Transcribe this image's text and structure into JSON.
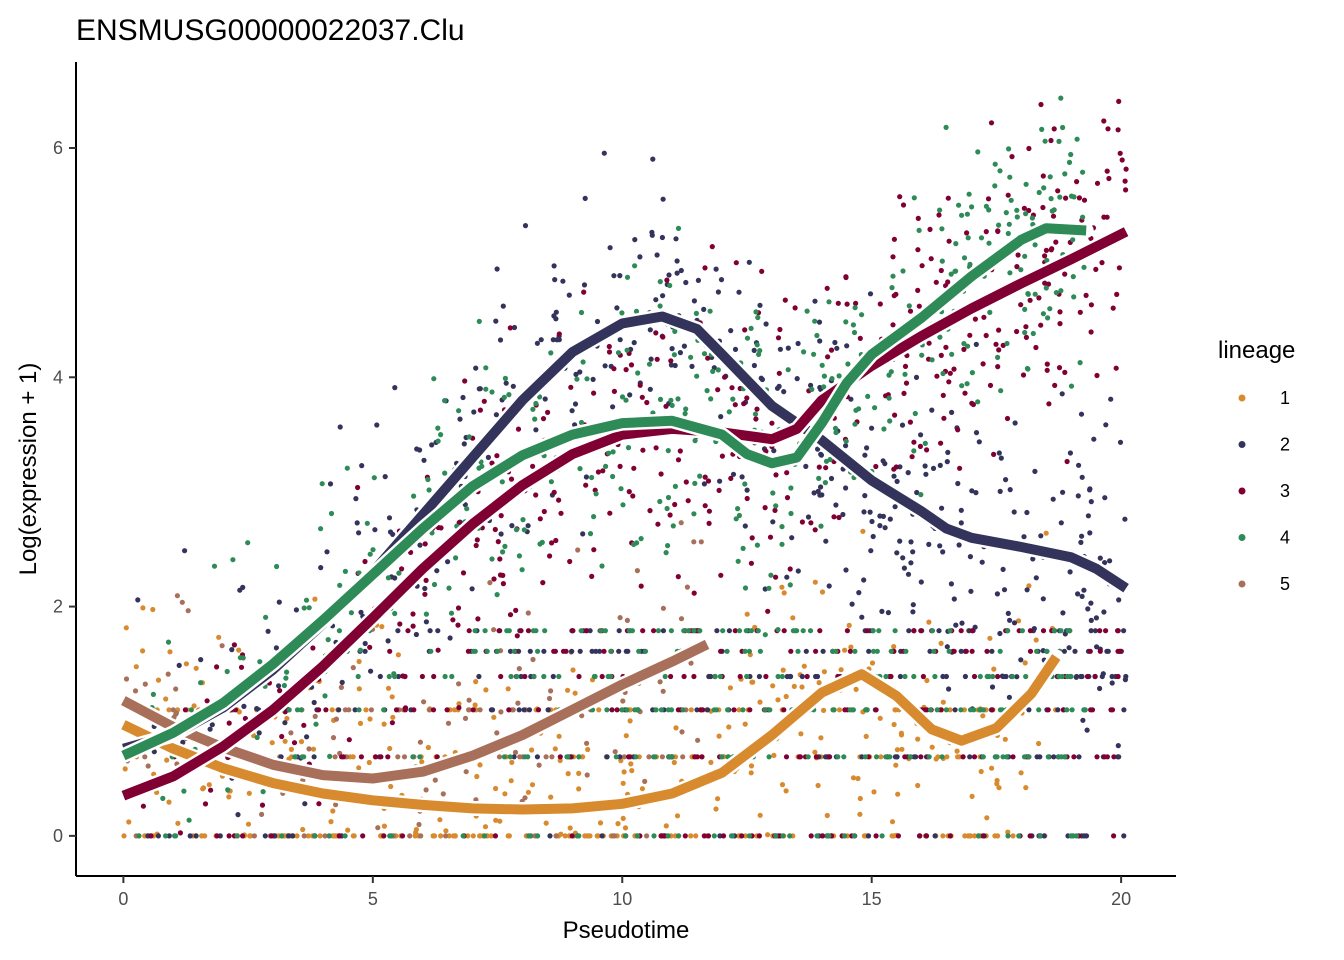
{
  "chart_data": {
    "type": "scatter",
    "title": "ENSMUSG00000022037.Clu",
    "xlabel": "Pseudotime",
    "ylabel": "Log(expression + 1)",
    "xlim": [
      -0.95,
      21.1
    ],
    "ylim": [
      -0.35,
      6.75
    ],
    "x_ticks": [
      0,
      5,
      10,
      15,
      20
    ],
    "y_ticks": [
      0,
      2,
      4,
      6
    ],
    "x_tick_labels": [
      "0",
      "5",
      "10",
      "15",
      "20"
    ],
    "y_tick_labels": [
      "0",
      "2",
      "4",
      "6"
    ],
    "grid": false,
    "legend": {
      "title": "lineage",
      "position": "right"
    },
    "series": [
      {
        "name": "1",
        "color": "#D88B2E",
        "x_range": [
          0,
          18.7
        ],
        "smooth": [
          [
            0,
            0.97
          ],
          [
            1,
            0.76
          ],
          [
            2,
            0.59
          ],
          [
            3,
            0.46
          ],
          [
            4,
            0.37
          ],
          [
            5,
            0.31
          ],
          [
            6,
            0.27
          ],
          [
            7,
            0.24
          ],
          [
            8,
            0.23
          ],
          [
            9,
            0.24
          ],
          [
            10,
            0.28
          ],
          [
            11,
            0.37
          ],
          [
            12,
            0.55
          ],
          [
            13,
            0.88
          ],
          [
            14,
            1.25
          ],
          [
            14.8,
            1.41
          ],
          [
            15.5,
            1.22
          ],
          [
            16.2,
            0.93
          ],
          [
            16.8,
            0.83
          ],
          [
            17.5,
            0.94
          ],
          [
            18.2,
            1.24
          ],
          [
            18.7,
            1.56
          ]
        ]
      },
      {
        "name": "2",
        "color": "#33335C",
        "x_range": [
          0,
          20.1
        ],
        "smooth": [
          [
            0,
            0.76
          ],
          [
            1,
            0.88
          ],
          [
            2,
            1.12
          ],
          [
            3,
            1.45
          ],
          [
            4,
            1.85
          ],
          [
            5,
            2.3
          ],
          [
            6,
            2.8
          ],
          [
            7,
            3.3
          ],
          [
            8,
            3.8
          ],
          [
            9,
            4.22
          ],
          [
            10,
            4.47
          ],
          [
            10.8,
            4.53
          ],
          [
            11.5,
            4.42
          ],
          [
            12,
            4.2
          ],
          [
            13,
            3.75
          ],
          [
            14,
            3.45
          ],
          [
            15,
            3.1
          ],
          [
            16,
            2.83
          ],
          [
            16.5,
            2.68
          ],
          [
            17,
            2.6
          ],
          [
            18,
            2.52
          ],
          [
            19,
            2.43
          ],
          [
            19.5,
            2.33
          ],
          [
            20.1,
            2.16
          ]
        ]
      },
      {
        "name": "3",
        "color": "#800033",
        "x_range": [
          0,
          20.1
        ],
        "smooth": [
          [
            0,
            0.35
          ],
          [
            1,
            0.52
          ],
          [
            2,
            0.78
          ],
          [
            3,
            1.1
          ],
          [
            4,
            1.48
          ],
          [
            5,
            1.9
          ],
          [
            6,
            2.33
          ],
          [
            7,
            2.72
          ],
          [
            8,
            3.06
          ],
          [
            9,
            3.33
          ],
          [
            10,
            3.5
          ],
          [
            11,
            3.55
          ],
          [
            12,
            3.52
          ],
          [
            13,
            3.46
          ],
          [
            13.5,
            3.55
          ],
          [
            14,
            3.8
          ],
          [
            15,
            4.1
          ],
          [
            16,
            4.36
          ],
          [
            17,
            4.6
          ],
          [
            18,
            4.82
          ],
          [
            19,
            5.03
          ],
          [
            20.1,
            5.27
          ]
        ]
      },
      {
        "name": "4",
        "color": "#2E8B57",
        "x_range": [
          0,
          19.3
        ],
        "smooth": [
          [
            0,
            0.7
          ],
          [
            1,
            0.9
          ],
          [
            2,
            1.16
          ],
          [
            3,
            1.5
          ],
          [
            4,
            1.88
          ],
          [
            5,
            2.28
          ],
          [
            6,
            2.68
          ],
          [
            7,
            3.05
          ],
          [
            8,
            3.32
          ],
          [
            9,
            3.5
          ],
          [
            10,
            3.6
          ],
          [
            11,
            3.62
          ],
          [
            12,
            3.5
          ],
          [
            12.5,
            3.33
          ],
          [
            13,
            3.25
          ],
          [
            13.5,
            3.3
          ],
          [
            14,
            3.6
          ],
          [
            14.5,
            3.95
          ],
          [
            15,
            4.2
          ],
          [
            16,
            4.52
          ],
          [
            17,
            4.88
          ],
          [
            18,
            5.2
          ],
          [
            18.5,
            5.3
          ],
          [
            19.3,
            5.28
          ]
        ]
      },
      {
        "name": "5",
        "color": "#A8705A",
        "x_range": [
          0,
          11.7
        ],
        "smooth": [
          [
            0,
            1.18
          ],
          [
            1,
            0.95
          ],
          [
            2,
            0.77
          ],
          [
            3,
            0.62
          ],
          [
            4,
            0.53
          ],
          [
            5,
            0.5
          ],
          [
            6,
            0.56
          ],
          [
            7,
            0.7
          ],
          [
            8,
            0.88
          ],
          [
            9,
            1.1
          ],
          [
            10,
            1.32
          ],
          [
            11,
            1.52
          ],
          [
            11.7,
            1.67
          ]
        ]
      }
    ]
  }
}
